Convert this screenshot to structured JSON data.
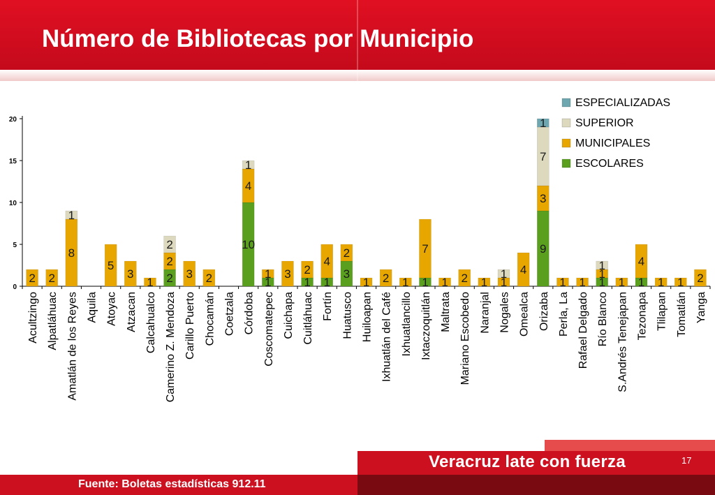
{
  "slide": {
    "title": "Número de Bibliotecas por Municipio",
    "slogan": "Veracruz late con fuerza",
    "page_number": "17",
    "source": "Fuente: Boletas estadísticas 912.11"
  },
  "colors": {
    "escolares": "#5aa01e",
    "municipales": "#e8a600",
    "superior": "#dcd9bf",
    "especializadas": "#6fa7b0",
    "header": "#d0101f"
  },
  "chart_data": {
    "type": "bar",
    "stacked": true,
    "ylim": [
      0,
      20
    ],
    "yticks": [
      0,
      5,
      10,
      15,
      20
    ],
    "legend_position": "top-right",
    "categories": [
      "Acultzingo",
      "Alpatláhuac",
      "Amatlán de los Reyes",
      "Aquila",
      "Atoyac",
      "Atzacan",
      "Calcahualco",
      "Camerino Z. Mendoza",
      "Carillo Puerto",
      "Chocamán",
      "Coetzala",
      "Córdoba",
      "Coscomatepec",
      "Cuichapa",
      "Cuitláhuac",
      "Fortín",
      "Huatusco",
      "Huiloapan",
      "Ixhuatlán del Café",
      "Ixhuatlancillo",
      "Ixtaczoquitlán",
      "Maltrata",
      "Mariano Escobedo",
      "Naranjal",
      "Nogales",
      "Omealca",
      "Orizaba",
      "Perla, La",
      "Rafael Delgado",
      "Río Blanco",
      "S.Andrés Tenejapan",
      "Tezonapa",
      "Tlilapan",
      "Tomatlán",
      "Yanga"
    ],
    "series": [
      {
        "name": "ESCOLARES",
        "values": [
          0,
          0,
          0,
          0,
          0,
          0,
          0,
          2,
          0,
          0,
          0,
          10,
          1,
          0,
          1,
          1,
          3,
          0,
          0,
          0,
          1,
          0,
          0,
          0,
          0,
          0,
          9,
          0,
          0,
          1,
          0,
          1,
          0,
          0,
          0
        ]
      },
      {
        "name": "MUNICIPALES",
        "values": [
          2,
          2,
          8,
          0,
          5,
          3,
          1,
          2,
          3,
          2,
          0,
          4,
          1,
          3,
          2,
          4,
          2,
          1,
          2,
          1,
          7,
          1,
          2,
          1,
          1,
          4,
          3,
          1,
          1,
          1,
          1,
          4,
          1,
          1,
          2
        ]
      },
      {
        "name": "SUPERIOR",
        "values": [
          0,
          0,
          1,
          0,
          0,
          0,
          0,
          2,
          0,
          0,
          0,
          1,
          0,
          0,
          0,
          0,
          0,
          0,
          0,
          0,
          0,
          0,
          0,
          0,
          1,
          0,
          7,
          0,
          0,
          1,
          0,
          0,
          0,
          0,
          0
        ]
      },
      {
        "name": "ESPECIALIZADAS",
        "values": [
          0,
          0,
          0,
          0,
          0,
          0,
          0,
          0,
          0,
          0,
          0,
          0,
          0,
          0,
          0,
          0,
          0,
          0,
          0,
          0,
          0,
          0,
          0,
          0,
          0,
          0,
          1,
          0,
          0,
          0,
          0,
          0,
          0,
          0,
          0
        ]
      }
    ]
  }
}
